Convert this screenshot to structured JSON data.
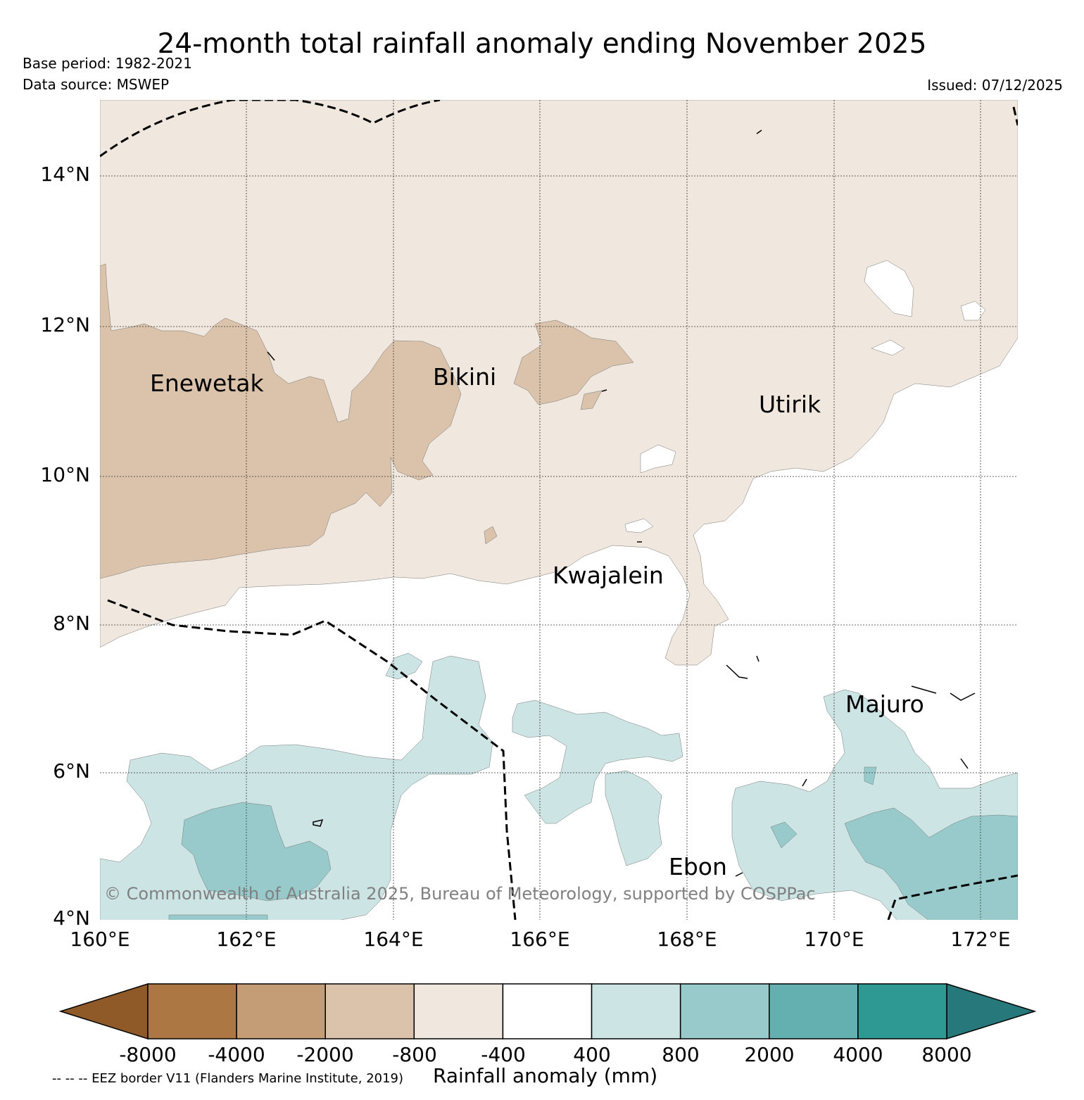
{
  "header": {
    "title": "24-month total rainfall anomaly ending November 2025",
    "base_period": "Base period: 1982-2021",
    "data_source": "Data source: MSWEP",
    "issued": "Issued: 07/12/2025"
  },
  "map": {
    "lat_labels": [
      "14°N",
      "12°N",
      "10°N",
      "8°N",
      "6°N",
      "4°N"
    ],
    "lon_labels": [
      "160°E",
      "162°E",
      "164°E",
      "166°E",
      "168°E",
      "170°E",
      "172°E"
    ],
    "places": [
      "Enewetak",
      "Bikini",
      "Utirik",
      "Kwajalein",
      "Majuro",
      "Ebon"
    ],
    "copyright": "© Commonwealth of Australia 2025, Bureau of Meteorology, supported by COSPPac"
  },
  "colorbar": {
    "ticks": [
      "-8000",
      "-4000",
      "-2000",
      "-800",
      "-400",
      "400",
      "800",
      "2000",
      "4000",
      "8000"
    ],
    "colors": [
      "#8f5a28",
      "#ad7743",
      "#c49c75",
      "#dbc2aa",
      "#f0e7de",
      "#ffffff",
      "#cce5e4",
      "#99cacb",
      "#64b0b0",
      "#2e9893",
      "#26787a"
    ],
    "title": "Rainfall anomaly (mm)"
  },
  "footer": {
    "eez_note": "-- -- -- EEZ border V11 (Flanders Marine Institute, 2019)"
  }
}
